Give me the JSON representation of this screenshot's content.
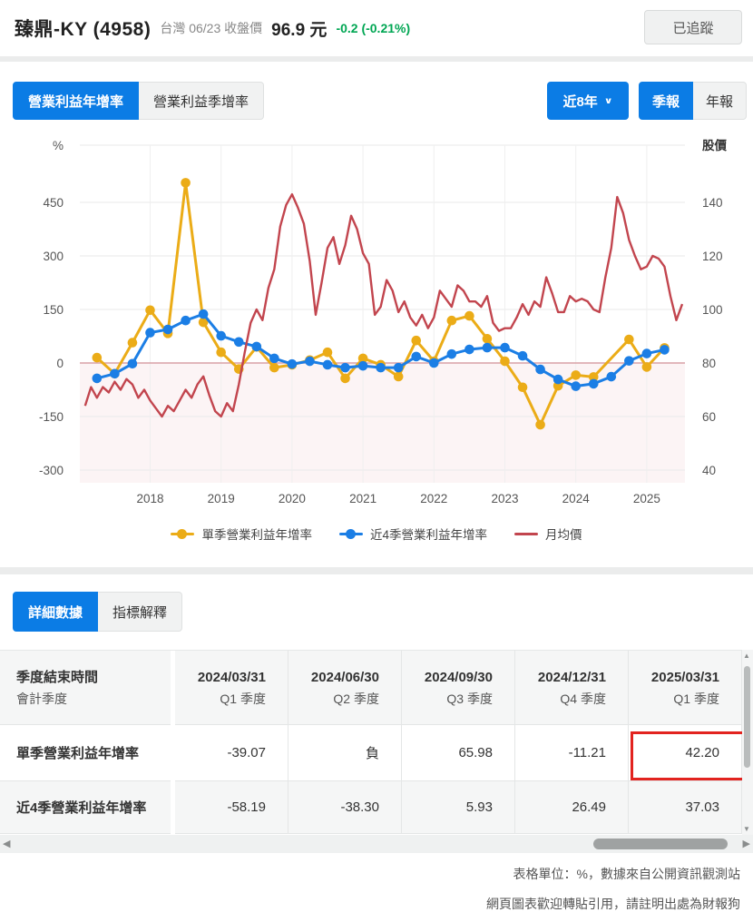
{
  "header": {
    "stock_name": "臻鼎-KY (4958)",
    "market_date_label": "台灣 06/23 收盤價",
    "price": "96.9",
    "price_unit": "元",
    "change": "-0.2 (-0.21%)",
    "follow_button": "已追蹤"
  },
  "toolbar": {
    "metric_tabs": [
      {
        "label": "營業利益年增率",
        "active": true
      },
      {
        "label": "營業利益季增率",
        "active": false
      }
    ],
    "range_button": "近8年",
    "period_tabs": [
      {
        "label": "季報",
        "active": true
      },
      {
        "label": "年報",
        "active": false
      }
    ]
  },
  "chart_data": {
    "type": "line",
    "title": "營業利益年增率 (近8年, 季報)",
    "left_axis": {
      "title": "%",
      "ticks": [
        450,
        300,
        150,
        0,
        -150,
        -300
      ],
      "range": [
        -380,
        600
      ]
    },
    "right_axis": {
      "title": "股價",
      "ticks": [
        140,
        120,
        100,
        80,
        60,
        40
      ],
      "range": [
        29.3,
        160
      ]
    },
    "x_ticks": [
      "2018",
      "2019",
      "2020",
      "2021",
      "2022",
      "2023",
      "2024",
      "2025"
    ],
    "grid": true,
    "legend_position": "bottom",
    "negative_region_shaded": true,
    "quarters": [
      "2017Q1",
      "2017Q2",
      "2017Q3",
      "2017Q4",
      "2018Q1",
      "2018Q2",
      "2018Q3",
      "2018Q4",
      "2019Q1",
      "2019Q2",
      "2019Q3",
      "2019Q4",
      "2020Q1",
      "2020Q2",
      "2020Q3",
      "2020Q4",
      "2021Q1",
      "2021Q2",
      "2021Q3",
      "2021Q4",
      "2022Q1",
      "2022Q2",
      "2022Q3",
      "2022Q4",
      "2023Q1",
      "2023Q2",
      "2023Q3",
      "2023Q4",
      "2024Q1",
      "2024Q2",
      "2024Q3",
      "2024Q4",
      "2025Q1"
    ],
    "series": [
      {
        "name": "單季營業利益年增率",
        "axis": "left",
        "color": "#ebac17",
        "marker": true,
        "values": [
          15,
          -30,
          57,
          148,
          83,
          505,
          114,
          30,
          -17,
          45,
          -13,
          -5,
          8,
          30,
          -43,
          13,
          -5,
          -38,
          63,
          5,
          119,
          132,
          68,
          5,
          -68,
          -173,
          -64,
          -34,
          -39.07,
          null,
          65.98,
          -11.21,
          42.2
        ]
      },
      {
        "name": "近4季營業利益年增率",
        "axis": "left",
        "color": "#1b7ee5",
        "marker": true,
        "values": [
          -43,
          -30,
          -2,
          85,
          94,
          119,
          137,
          76,
          59,
          46,
          13,
          -3,
          5,
          -5,
          -13,
          -8,
          -13,
          -13,
          18,
          0,
          25,
          38,
          43,
          43,
          20,
          -18,
          -46,
          -65,
          -58.19,
          -38.3,
          5.93,
          26.49,
          37.03
        ]
      },
      {
        "name": "月均價",
        "axis": "right",
        "color": "#c2454e",
        "marker": false,
        "monthly_range": "2017-01 ~ 2025-06",
        "values": [
          64,
          71,
          67,
          71,
          69,
          73,
          70,
          74,
          72,
          67,
          70,
          66,
          63,
          60,
          64,
          62,
          66,
          70,
          67,
          72,
          75,
          68,
          62,
          60,
          65,
          62,
          72,
          84,
          95,
          100,
          96,
          108,
          115,
          131,
          139,
          143,
          138,
          132,
          118,
          98,
          110,
          123,
          127,
          117,
          124,
          135,
          130,
          121,
          117,
          98,
          101,
          111,
          107,
          99,
          103,
          97,
          94,
          98,
          93,
          97,
          107,
          104,
          101,
          109,
          107,
          103,
          103,
          101,
          105,
          95,
          92,
          93,
          93,
          97,
          102,
          98,
          103,
          101,
          112,
          106,
          99,
          99,
          105,
          103,
          104,
          103,
          100,
          99,
          112,
          123,
          142,
          136,
          126,
          120,
          115,
          116,
          120,
          119,
          116,
          105,
          96,
          102
        ]
      }
    ]
  },
  "table_section": {
    "tabs": [
      {
        "label": "詳細數據",
        "active": true
      },
      {
        "label": "指標解釋",
        "active": false
      }
    ],
    "header": {
      "line1": "季度結束時間",
      "line2": "會計季度"
    },
    "columns": [
      {
        "date": "2024/03/31",
        "quarter": "Q1 季度"
      },
      {
        "date": "2024/06/30",
        "quarter": "Q2 季度"
      },
      {
        "date": "2024/09/30",
        "quarter": "Q3 季度"
      },
      {
        "date": "2024/12/31",
        "quarter": "Q4 季度"
      },
      {
        "date": "2025/03/31",
        "quarter": "Q1 季度"
      }
    ],
    "rows": [
      {
        "label": "單季營業利益年增率",
        "values": [
          "-39.07",
          "負",
          "65.98",
          "-11.21",
          "42.20"
        ],
        "highlighted_value_index": 4
      },
      {
        "label": "近4季營業利益年增率",
        "values": [
          "-58.19",
          "-38.30",
          "5.93",
          "26.49",
          "37.03"
        ]
      }
    ]
  },
  "footer": {
    "line1": "表格單位：%，數據來自公開資訊觀測站",
    "line2": "網頁圖表歡迎轉貼引用，請註明出處為財報狗"
  },
  "colors": {
    "accent_blue": "#0b7ce5",
    "change_green": "#00a653",
    "series_yellow": "#ebac17",
    "series_blue": "#1b7ee5",
    "series_red": "#c2454e",
    "highlight_box_red": "#e2231f",
    "zero_line": "#d9a1a6",
    "negative_region": "#fcf4f5"
  }
}
